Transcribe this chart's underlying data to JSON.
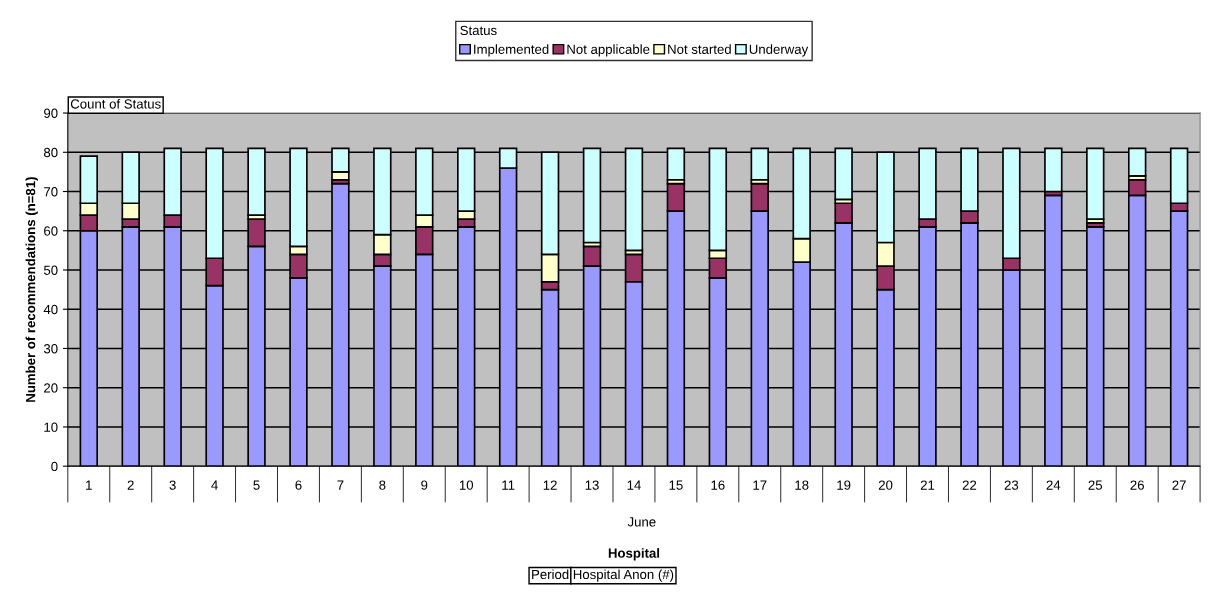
{
  "chart_data": {
    "type": "bar",
    "stacked": true,
    "categories": [
      "1",
      "2",
      "3",
      "4",
      "5",
      "6",
      "7",
      "8",
      "9",
      "10",
      "11",
      "12",
      "13",
      "14",
      "15",
      "16",
      "17",
      "18",
      "19",
      "20",
      "21",
      "22",
      "23",
      "24",
      "25",
      "26",
      "27"
    ],
    "series": [
      {
        "name": "Implemented",
        "color": "#9999ff",
        "values": [
          60,
          61,
          61,
          46,
          56,
          48,
          72,
          51,
          54,
          61,
          76,
          45,
          51,
          47,
          65,
          48,
          65,
          52,
          62,
          45,
          61,
          62,
          50,
          69,
          61,
          69,
          65
        ]
      },
      {
        "name": "Not applicable",
        "color": "#993366",
        "values": [
          4,
          2,
          3,
          7,
          7,
          6,
          1,
          3,
          7,
          2,
          0,
          2,
          5,
          7,
          7,
          5,
          7,
          0,
          5,
          6,
          2,
          3,
          3,
          1,
          1,
          4,
          2
        ]
      },
      {
        "name": "Not started",
        "color": "#ffffcc",
        "values": [
          3,
          4,
          0,
          0,
          1,
          2,
          2,
          5,
          3,
          2,
          0,
          7,
          1,
          1,
          1,
          2,
          1,
          6,
          1,
          6,
          0,
          0,
          0,
          0,
          1,
          1,
          0
        ]
      },
      {
        "name": "Underway",
        "color": "#ccffff",
        "values": [
          12,
          13,
          17,
          28,
          17,
          25,
          6,
          22,
          17,
          16,
          5,
          26,
          24,
          26,
          8,
          26,
          8,
          23,
          13,
          23,
          18,
          16,
          28,
          11,
          18,
          7,
          14
        ]
      }
    ],
    "xlabel": "Hospital",
    "ylabel": "Number of recommendations (n=81)",
    "legend_title": "Status",
    "ylim": [
      0,
      90
    ],
    "yticks": [
      0,
      10,
      20,
      30,
      40,
      50,
      60,
      70,
      80,
      90
    ],
    "grid": "y",
    "legend": "top",
    "annotations": [
      "Count of Status",
      "June",
      "Period",
      "Hospital Anon (#)"
    ]
  }
}
